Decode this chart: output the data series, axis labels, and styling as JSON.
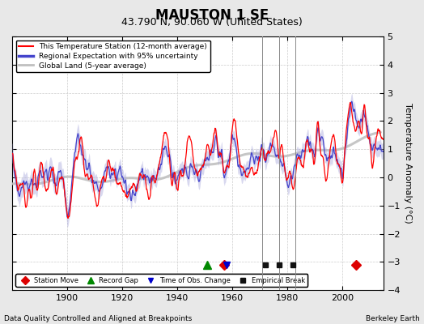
{
  "title": "MAUSTON 1 SE",
  "subtitle": "43.790 N, 90.060 W (United States)",
  "xlabel_left": "Data Quality Controlled and Aligned at Breakpoints",
  "xlabel_right": "Berkeley Earth",
  "ylabel": "Temperature Anomaly (°C)",
  "xlim": [
    1880,
    2015
  ],
  "ylim": [
    -4,
    5
  ],
  "yticks": [
    -4,
    -3,
    -2,
    -1,
    0,
    1,
    2,
    3,
    4,
    5
  ],
  "xticks": [
    1900,
    1920,
    1940,
    1960,
    1980,
    2000
  ],
  "background_color": "#e8e8e8",
  "plot_bg_color": "#ffffff",
  "legend_line_color": "#ff0000",
  "legend_region_color": "#4444cc",
  "legend_global_color": "#c0c0c0",
  "uncertainty_fill_color": "#aaaadd",
  "uncertainty_fill_alpha": 0.45,
  "station_move_years": [
    1957,
    2005
  ],
  "record_gap_years": [
    1951
  ],
  "time_obs_years": [
    1958
  ],
  "empirical_break_years": [
    1972,
    1977,
    1982
  ],
  "vertical_line_years": [
    1971,
    1977,
    1983
  ],
  "marker_y": -3.1,
  "vline_color": "#888888",
  "vline_lw": 0.7
}
